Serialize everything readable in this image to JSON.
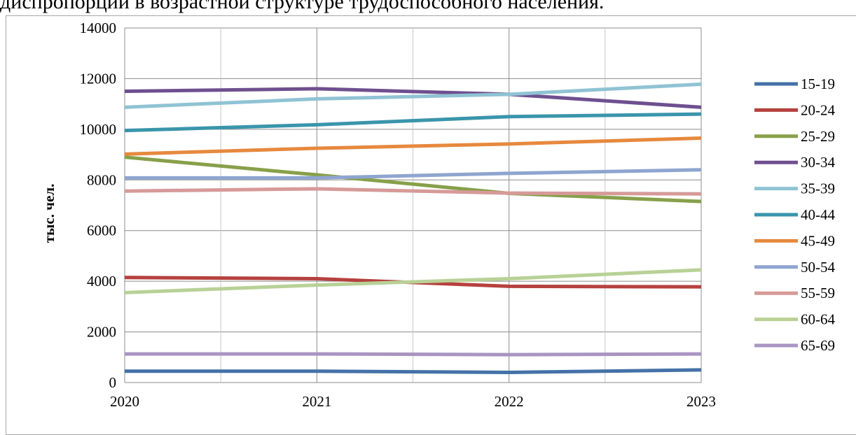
{
  "caption": "диспропорции в возрастной структуре трудоспособного населения.",
  "chart_data": {
    "type": "line",
    "title": "",
    "xlabel": "",
    "ylabel": "тыс. чел.",
    "x": [
      "2020",
      "2021",
      "2022",
      "2023"
    ],
    "ylim": [
      0,
      14000
    ],
    "yticks": [
      "0",
      "2000",
      "4000",
      "6000",
      "8000",
      "10000",
      "12000",
      "14000"
    ],
    "grid": true,
    "legend_position": "right",
    "series": [
      {
        "name": "15-19",
        "color": "#4472a8",
        "values": [
          450,
          450,
          400,
          500
        ]
      },
      {
        "name": "20-24",
        "color": "#b5413e",
        "values": [
          4150,
          4100,
          3800,
          3780
        ]
      },
      {
        "name": "25-29",
        "color": "#87a04a",
        "values": [
          8900,
          8200,
          7470,
          7150
        ]
      },
      {
        "name": "30-34",
        "color": "#6f4f8f",
        "values": [
          11500,
          11600,
          11380,
          10870
        ]
      },
      {
        "name": "35-39",
        "color": "#8fc3d4",
        "values": [
          10870,
          11200,
          11380,
          11780
        ]
      },
      {
        "name": "40-44",
        "color": "#3a95ab",
        "values": [
          9950,
          10180,
          10500,
          10600
        ]
      },
      {
        "name": "45-49",
        "color": "#e6893e",
        "values": [
          9020,
          9250,
          9420,
          9650
        ]
      },
      {
        "name": "50-54",
        "color": "#8ea5cf",
        "values": [
          8080,
          8080,
          8260,
          8400
        ]
      },
      {
        "name": "55-59",
        "color": "#d69a98",
        "values": [
          7560,
          7650,
          7480,
          7450
        ]
      },
      {
        "name": "60-64",
        "color": "#b8d196",
        "values": [
          3550,
          3850,
          4100,
          4450
        ]
      },
      {
        "name": "65-69",
        "color": "#a995c2",
        "values": [
          1130,
          1130,
          1100,
          1130
        ]
      }
    ]
  }
}
